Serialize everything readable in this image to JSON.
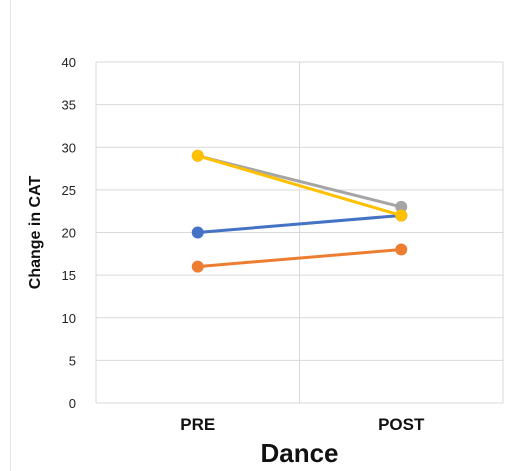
{
  "chart_data": {
    "type": "line",
    "categories": [
      "PRE",
      "POST"
    ],
    "xlabel": "Dance",
    "ylabel": "Change in CAT",
    "ylim": [
      0,
      40
    ],
    "yticks": [
      0,
      5,
      10,
      15,
      20,
      25,
      30,
      35,
      40
    ],
    "grid": true,
    "series": [
      {
        "color": "#4472C4",
        "values": [
          20,
          22
        ]
      },
      {
        "color": "#ED7D31",
        "values": [
          16,
          18
        ]
      },
      {
        "color": "#A5A5A5",
        "values": [
          29,
          23
        ]
      },
      {
        "color": "#FFC000",
        "values": [
          29,
          22
        ]
      }
    ]
  }
}
